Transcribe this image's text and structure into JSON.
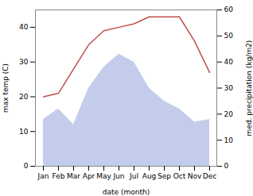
{
  "chart_data": {
    "type": "line",
    "categories": [
      "Jan",
      "Feb",
      "Mar",
      "Apr",
      "May",
      "Jun",
      "Jul",
      "Aug",
      "Sep",
      "Oct",
      "Nov",
      "Dec"
    ],
    "series": [
      {
        "type": "area",
        "color": "#b8c4e8",
        "axis": "y2",
        "values": [
          18,
          22,
          16,
          30,
          38,
          43,
          40,
          30,
          25,
          22,
          17,
          18
        ]
      },
      {
        "type": "line",
        "color": "#c0504d",
        "values": [
          20,
          21,
          28,
          35,
          39,
          40,
          41,
          43,
          43,
          43,
          36,
          27
        ]
      }
    ],
    "xlabel": "date (month)",
    "ylabel": "max temp (C)",
    "y2label": "med. precipitation (kg/m2)",
    "ylim": [
      0,
      45
    ],
    "yticks": [
      0,
      10,
      20,
      30,
      40
    ],
    "y2lim": [
      0,
      60
    ],
    "y2ticks": [
      0,
      10,
      20,
      30,
      40,
      50,
      60
    ],
    "grid": false
  }
}
